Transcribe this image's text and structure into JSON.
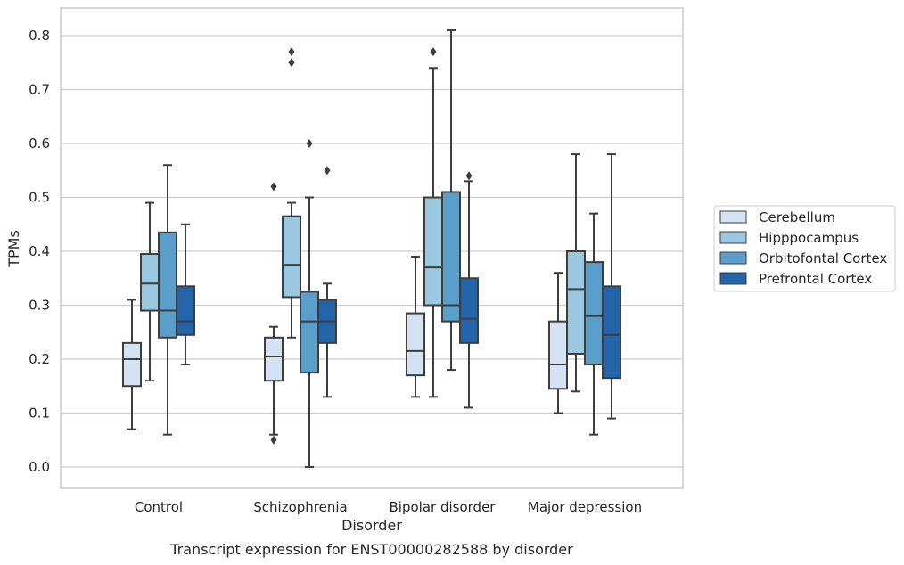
{
  "caption": "Transcript expression for ENST00000282588 by disorder",
  "chart_data": {
    "type": "boxplot",
    "title": "",
    "xlabel": "Disorder",
    "ylabel": "TPMs",
    "ylim": [
      -0.04,
      0.85
    ],
    "yticks": [
      0.0,
      0.1,
      0.2,
      0.3,
      0.4,
      0.5,
      0.6,
      0.7,
      0.8
    ],
    "ytick_labels": [
      "0.0",
      "0.1",
      "0.2",
      "0.3",
      "0.4",
      "0.5",
      "0.6",
      "0.7",
      "0.8"
    ],
    "grid": "horizontal",
    "legend_position": "right",
    "categories": [
      "Control",
      "Schizophrenia",
      "Bipolar disorder",
      "Major depression"
    ],
    "series": [
      {
        "name": "Cerebellum",
        "color": "#d3e3f3",
        "boxes": [
          {
            "whisker_low": 0.07,
            "q1": 0.15,
            "median": 0.2,
            "q3": 0.23,
            "whisker_high": 0.31,
            "outliers": []
          },
          {
            "whisker_low": 0.06,
            "q1": 0.16,
            "median": 0.205,
            "q3": 0.24,
            "whisker_high": 0.26,
            "outliers": [
              0.52,
              0.05
            ]
          },
          {
            "whisker_low": 0.13,
            "q1": 0.17,
            "median": 0.215,
            "q3": 0.285,
            "whisker_high": 0.39,
            "outliers": []
          },
          {
            "whisker_low": 0.1,
            "q1": 0.145,
            "median": 0.19,
            "q3": 0.27,
            "whisker_high": 0.36,
            "outliers": []
          }
        ]
      },
      {
        "name": "Hipppocampus",
        "color": "#9ac8e0",
        "boxes": [
          {
            "whisker_low": 0.16,
            "q1": 0.29,
            "median": 0.34,
            "q3": 0.395,
            "whisker_high": 0.49,
            "outliers": []
          },
          {
            "whisker_low": 0.24,
            "q1": 0.315,
            "median": 0.375,
            "q3": 0.465,
            "whisker_high": 0.49,
            "outliers": [
              0.77,
              0.75
            ]
          },
          {
            "whisker_low": 0.13,
            "q1": 0.3,
            "median": 0.37,
            "q3": 0.5,
            "whisker_high": 0.74,
            "outliers": [
              0.77
            ]
          },
          {
            "whisker_low": 0.14,
            "q1": 0.21,
            "median": 0.33,
            "q3": 0.4,
            "whisker_high": 0.58,
            "outliers": []
          }
        ]
      },
      {
        "name": "Orbitofontal Cortex",
        "color": "#5a9ec9",
        "boxes": [
          {
            "whisker_low": 0.06,
            "q1": 0.24,
            "median": 0.29,
            "q3": 0.435,
            "whisker_high": 0.56,
            "outliers": []
          },
          {
            "whisker_low": 0.0,
            "q1": 0.175,
            "median": 0.27,
            "q3": 0.325,
            "whisker_high": 0.5,
            "outliers": [
              0.6
            ]
          },
          {
            "whisker_low": 0.18,
            "q1": 0.27,
            "median": 0.3,
            "q3": 0.51,
            "whisker_high": 0.81,
            "outliers": []
          },
          {
            "whisker_low": 0.06,
            "q1": 0.19,
            "median": 0.28,
            "q3": 0.38,
            "whisker_high": 0.47,
            "outliers": []
          }
        ]
      },
      {
        "name": "Prefrontal Cortex",
        "color": "#2465a9",
        "boxes": [
          {
            "whisker_low": 0.19,
            "q1": 0.245,
            "median": 0.27,
            "q3": 0.335,
            "whisker_high": 0.45,
            "outliers": []
          },
          {
            "whisker_low": 0.13,
            "q1": 0.23,
            "median": 0.27,
            "q3": 0.31,
            "whisker_high": 0.34,
            "outliers": [
              0.55
            ]
          },
          {
            "whisker_low": 0.11,
            "q1": 0.23,
            "median": 0.275,
            "q3": 0.35,
            "whisker_high": 0.53,
            "outliers": [
              0.54
            ]
          },
          {
            "whisker_low": 0.09,
            "q1": 0.165,
            "median": 0.245,
            "q3": 0.335,
            "whisker_high": 0.58,
            "outliers": []
          }
        ]
      }
    ]
  }
}
